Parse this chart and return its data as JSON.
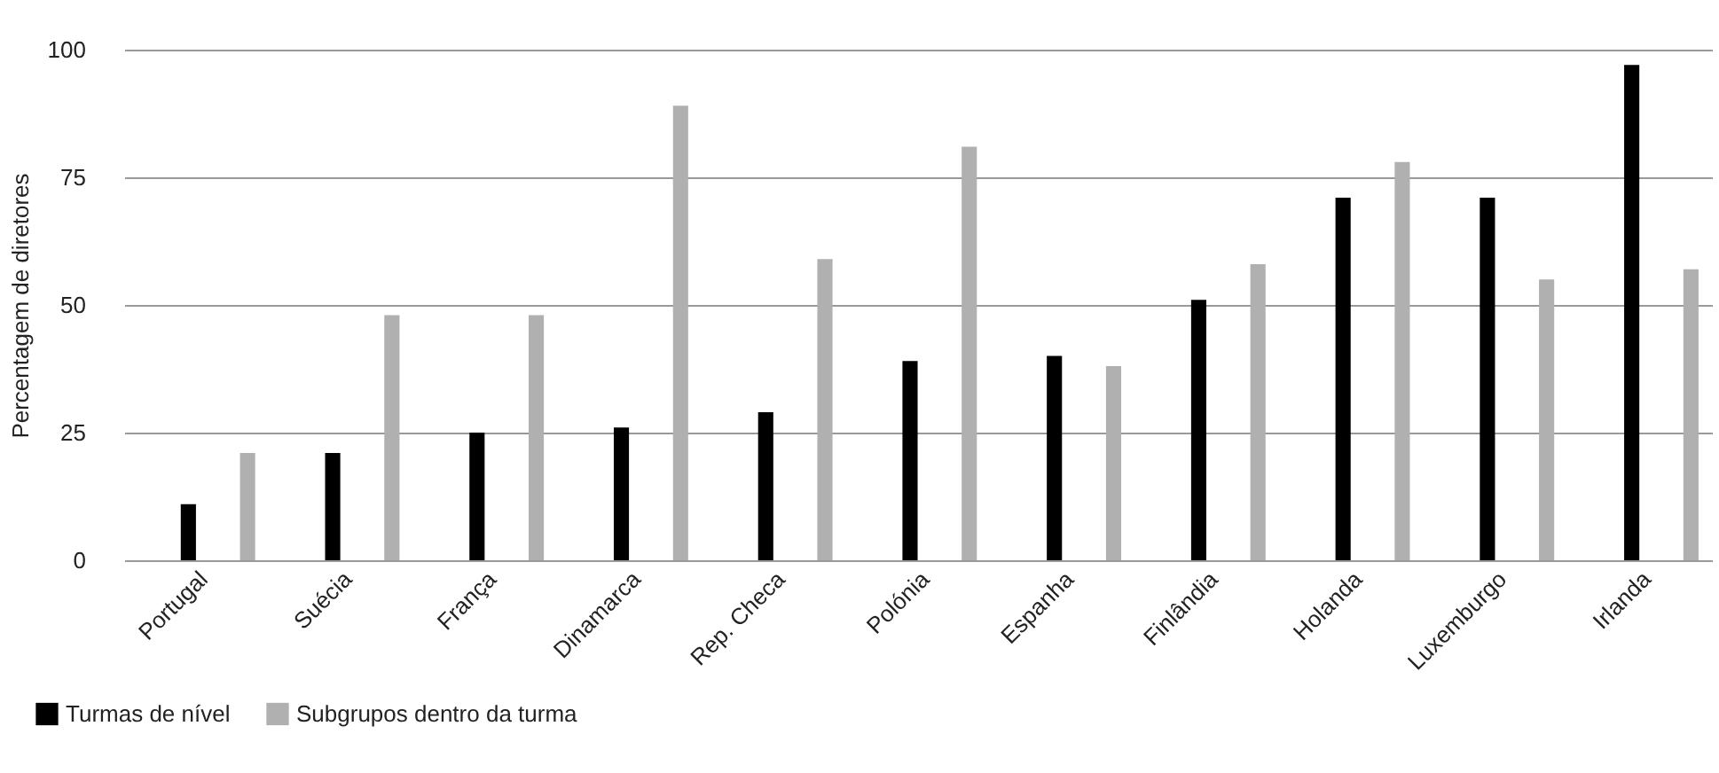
{
  "chart_data": {
    "type": "bar",
    "ylabel": "Percentagem de diretores",
    "categories": [
      "Portugal",
      "Suécia",
      "França",
      "Dinamarca",
      "Rep. Checa",
      "Polónia",
      "Espanha",
      "Finlândia",
      "Holanda",
      "Luxemburgo",
      "Irlanda"
    ],
    "series": [
      {
        "name": "Turmas de nível",
        "color": "#000000",
        "values": [
          11,
          21,
          25,
          26,
          29,
          39,
          40,
          51,
          71,
          71,
          97
        ]
      },
      {
        "name": "Subgrupos dentro da turma",
        "color": "#b0b0b0",
        "values": [
          21,
          48,
          48,
          89,
          59,
          81,
          38,
          58,
          78,
          55,
          57
        ]
      }
    ],
    "ylim": [
      0,
      100
    ],
    "yticks": [
      0,
      25,
      50,
      75,
      100
    ],
    "grid": "y",
    "legend": "bottom left"
  }
}
